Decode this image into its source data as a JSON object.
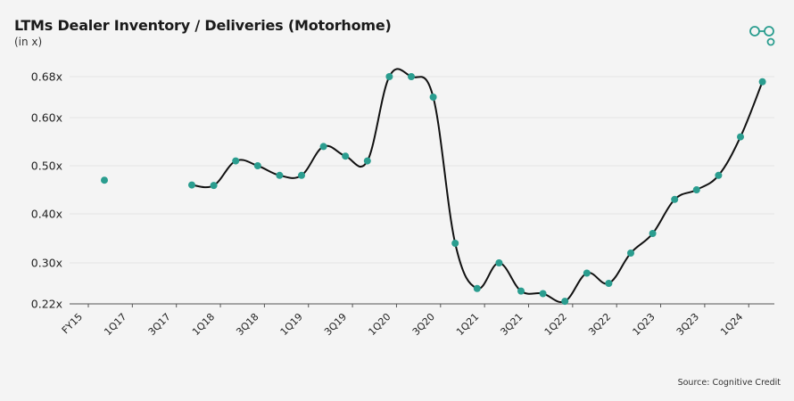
{
  "header": {
    "title": "LTMs Dealer Inventory / Deliveries (Motorhome)",
    "subtitle": "(in x)"
  },
  "footer": {
    "source": "Source: Cognitive Credit"
  },
  "logo": {
    "icon": "cognitive-credit-logo-icon",
    "color": "#2a9d8f"
  },
  "chart_data": {
    "type": "line",
    "title": "LTMs Dealer Inventory / Deliveries (Motorhome)",
    "ylabel": "(in x)",
    "xlabel": "",
    "ylim": [
      0.22,
      0.68
    ],
    "yticks": [
      0.22,
      0.3,
      0.4,
      0.5,
      0.6,
      0.68
    ],
    "ytick_labels": [
      "0.22x",
      "0.30x",
      "0.40x",
      "0.50x",
      "0.60x",
      "0.68x"
    ],
    "x_tick_labels": [
      "FY15",
      "1Q17",
      "3Q17",
      "1Q18",
      "3Q18",
      "1Q19",
      "3Q19",
      "1Q20",
      "3Q20",
      "1Q21",
      "3Q21",
      "1Q22",
      "3Q22",
      "1Q23",
      "3Q23",
      "1Q24"
    ],
    "line_color": "#111111",
    "marker_color": "#2a9d8f",
    "series": [
      {
        "name": "LTMs Dealer Inventory / Deliveries",
        "points": [
          {
            "period": "FY15",
            "value": 0.47,
            "connected": false
          },
          {
            "period": "4Q17",
            "value": 0.46,
            "connected": true
          },
          {
            "period": "1Q18",
            "value": 0.459,
            "connected": true
          },
          {
            "period": "2Q18",
            "value": 0.51,
            "connected": true
          },
          {
            "period": "3Q18",
            "value": 0.5,
            "connected": true
          },
          {
            "period": "4Q18",
            "value": 0.48,
            "connected": true
          },
          {
            "period": "1Q19",
            "value": 0.48,
            "connected": true
          },
          {
            "period": "2Q19",
            "value": 0.54,
            "connected": true
          },
          {
            "period": "3Q19",
            "value": 0.52,
            "connected": true
          },
          {
            "period": "4Q19",
            "value": 0.51,
            "connected": true
          },
          {
            "period": "1Q20",
            "value": 0.68,
            "connected": true
          },
          {
            "period": "2Q20",
            "value": 0.68,
            "connected": true
          },
          {
            "period": "3Q20",
            "value": 0.64,
            "connected": true
          },
          {
            "period": "4Q20",
            "value": 0.34,
            "connected": true
          },
          {
            "period": "1Q21",
            "value": 0.25,
            "connected": true
          },
          {
            "period": "2Q21",
            "value": 0.3,
            "connected": true
          },
          {
            "period": "3Q21",
            "value": 0.245,
            "connected": true
          },
          {
            "period": "4Q21",
            "value": 0.24,
            "connected": true
          },
          {
            "period": "1Q22",
            "value": 0.225,
            "connected": true
          },
          {
            "period": "2Q22",
            "value": 0.28,
            "connected": true
          },
          {
            "period": "3Q22",
            "value": 0.26,
            "connected": true
          },
          {
            "period": "4Q22",
            "value": 0.32,
            "connected": true
          },
          {
            "period": "1Q23",
            "value": 0.36,
            "connected": true
          },
          {
            "period": "2Q23",
            "value": 0.43,
            "connected": true
          },
          {
            "period": "3Q23",
            "value": 0.45,
            "connected": true
          },
          {
            "period": "4Q23",
            "value": 0.48,
            "connected": true
          },
          {
            "period": "1Q24",
            "value": 0.56,
            "connected": true
          },
          {
            "period": "2Q24",
            "value": 0.67,
            "connected": true
          }
        ]
      }
    ]
  }
}
